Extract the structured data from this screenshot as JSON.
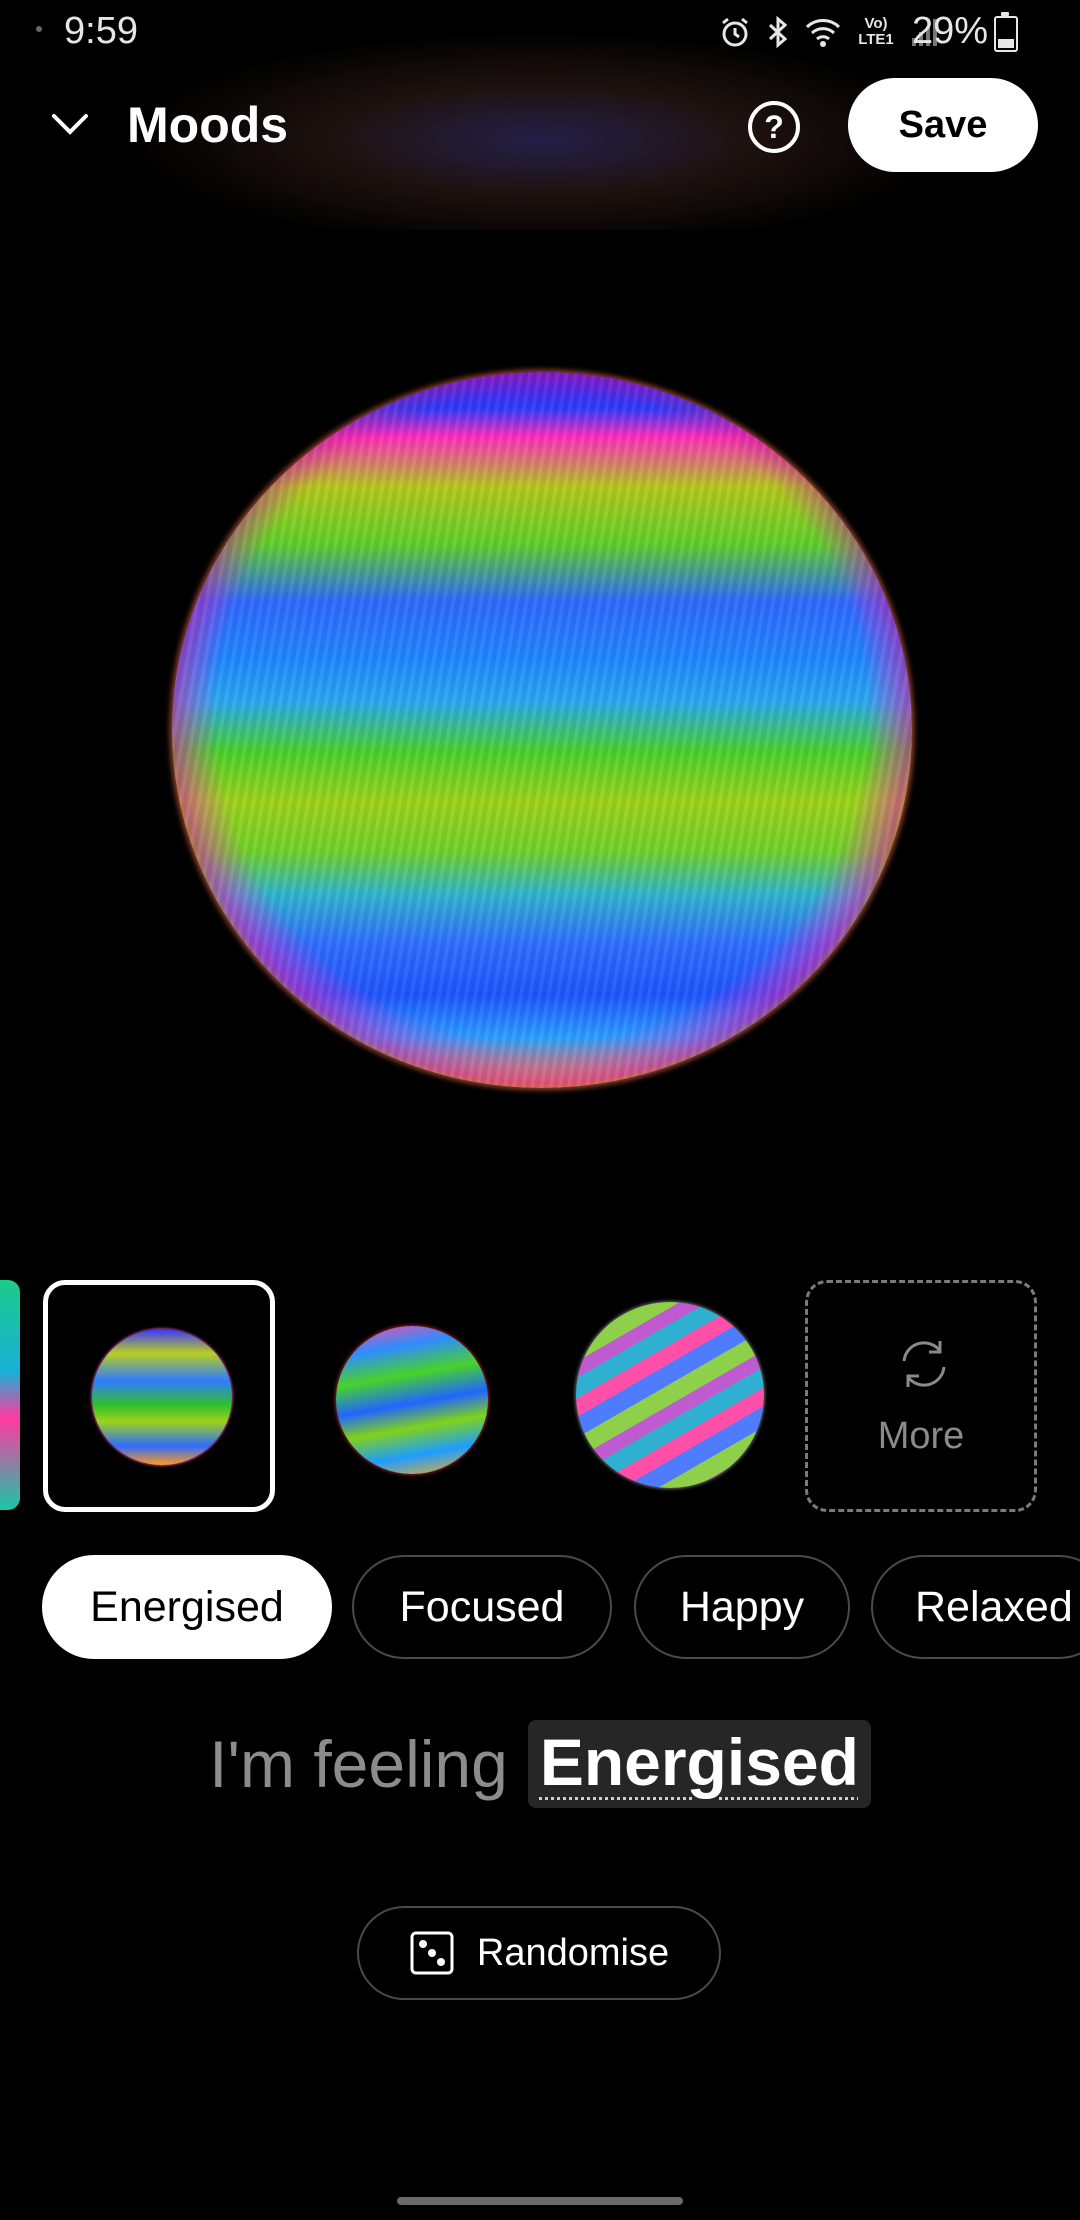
{
  "status_bar": {
    "time": "9:59",
    "network_label": "Vo) LTE1",
    "battery_percent_text": "29%",
    "battery_level": 0.29,
    "icons": [
      "alarm-icon",
      "bluetooth-icon",
      "wifi-icon",
      "volte-lte-icon",
      "signal-icon",
      "battery-icon"
    ]
  },
  "header": {
    "title": "Moods",
    "help_symbol": "?",
    "save_label": "Save"
  },
  "thumbnails": {
    "more_label": "More"
  },
  "chips": [
    {
      "label": "Energised",
      "active": true
    },
    {
      "label": "Focused",
      "active": false
    },
    {
      "label": "Happy",
      "active": false
    },
    {
      "label": "Relaxed",
      "active": false
    }
  ],
  "feeling": {
    "prefix": "I'm feeling",
    "value": "Energised"
  },
  "randomise": {
    "label": "Randomise"
  },
  "colors": {
    "background": "#000000",
    "primary_text": "#ffffff",
    "muted_text": "#8c8c8c",
    "chip_border": "#4a4a4a",
    "active_chip_bg": "#ffffff"
  }
}
